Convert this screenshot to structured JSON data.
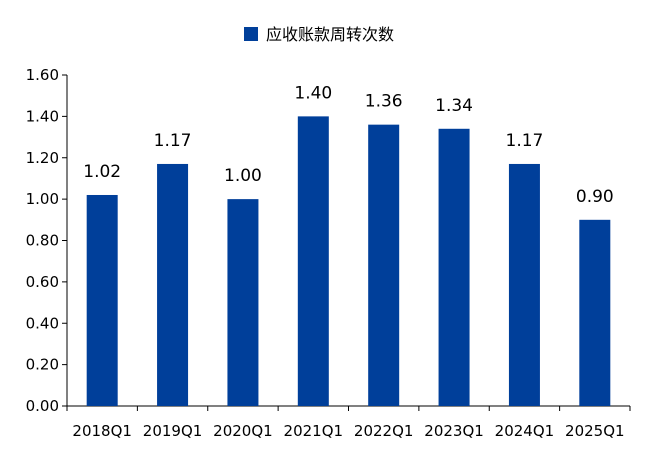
{
  "chart_data": {
    "type": "bar",
    "categories": [
      "2018Q1",
      "2019Q1",
      "2020Q1",
      "2021Q1",
      "2022Q1",
      "2023Q1",
      "2024Q1",
      "2025Q1"
    ],
    "series": [
      {
        "name": "应收账款周转次数",
        "values": [
          1.02,
          1.17,
          1.0,
          1.4,
          1.36,
          1.34,
          1.17,
          0.9
        ],
        "data_labels": [
          "1.02",
          "1.17",
          "1.00",
          "1.40",
          "1.36",
          "1.34",
          "1.17",
          "0.90"
        ]
      }
    ],
    "y_ticks": [
      "0.00",
      "0.20",
      "0.40",
      "0.60",
      "0.80",
      "1.00",
      "1.20",
      "1.40",
      "1.60"
    ],
    "ylim": [
      0,
      1.6
    ],
    "grid": false,
    "legend_position": "top-center",
    "bar_color": "#003F9A"
  }
}
